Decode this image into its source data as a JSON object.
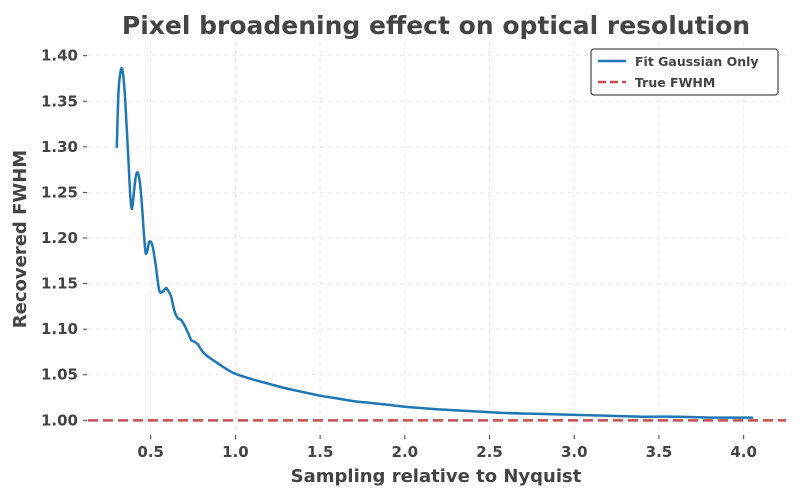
{
  "chart_data": {
    "type": "line",
    "title": "Pixel broadening effect on optical resolution",
    "xlabel": "Sampling relative to Nyquist",
    "ylabel": "Recovered FWHM",
    "xlim": [
      0.13,
      4.25
    ],
    "ylim": [
      0.985,
      1.415
    ],
    "xticks": [
      0.5,
      1.0,
      1.5,
      2.0,
      2.5,
      3.0,
      3.5,
      4.0
    ],
    "xtick_labels": [
      "0.5",
      "1.0",
      "1.5",
      "2.0",
      "2.5",
      "3.0",
      "3.5",
      "4.0"
    ],
    "yticks": [
      1.0,
      1.05,
      1.1,
      1.15,
      1.2,
      1.25,
      1.3,
      1.35,
      1.4
    ],
    "ytick_labels": [
      "1.00",
      "1.05",
      "1.10",
      "1.15",
      "1.20",
      "1.25",
      "1.30",
      "1.35",
      "1.40"
    ],
    "grid": true,
    "legend_position": "top-right",
    "series": [
      {
        "name": "Fit Gaussian Only",
        "color": "#1f77b4",
        "style": "solid",
        "x": [
          0.3,
          0.31,
          0.32,
          0.33,
          0.34,
          0.35,
          0.36,
          0.37,
          0.38,
          0.39,
          0.4,
          0.41,
          0.42,
          0.43,
          0.44,
          0.45,
          0.46,
          0.47,
          0.48,
          0.49,
          0.5,
          0.51,
          0.52,
          0.53,
          0.55,
          0.57,
          0.59,
          0.6,
          0.62,
          0.64,
          0.66,
          0.68,
          0.7,
          0.72,
          0.74,
          0.76,
          0.78,
          0.8,
          0.83,
          0.86,
          0.9,
          0.95,
          1.0,
          1.1,
          1.2,
          1.3,
          1.4,
          1.5,
          1.6,
          1.7,
          1.8,
          1.9,
          2.0,
          2.2,
          2.4,
          2.6,
          2.8,
          3.0,
          3.2,
          3.4,
          3.6,
          3.8,
          4.05
        ],
        "y": [
          1.3,
          1.36,
          1.38,
          1.386,
          1.375,
          1.35,
          1.315,
          1.28,
          1.245,
          1.232,
          1.248,
          1.265,
          1.272,
          1.268,
          1.255,
          1.232,
          1.205,
          1.184,
          1.186,
          1.195,
          1.196,
          1.192,
          1.182,
          1.17,
          1.143,
          1.141,
          1.145,
          1.143,
          1.136,
          1.12,
          1.112,
          1.11,
          1.104,
          1.096,
          1.088,
          1.086,
          1.083,
          1.077,
          1.071,
          1.067,
          1.062,
          1.056,
          1.051,
          1.045,
          1.04,
          1.035,
          1.031,
          1.027,
          1.024,
          1.021,
          1.019,
          1.017,
          1.015,
          1.012,
          1.01,
          1.008,
          1.007,
          1.006,
          1.005,
          1.004,
          1.004,
          1.003,
          1.003
        ]
      },
      {
        "name": "True FWHM",
        "color": "#c44e52",
        "style": "dashed",
        "y": 1.0
      }
    ]
  }
}
